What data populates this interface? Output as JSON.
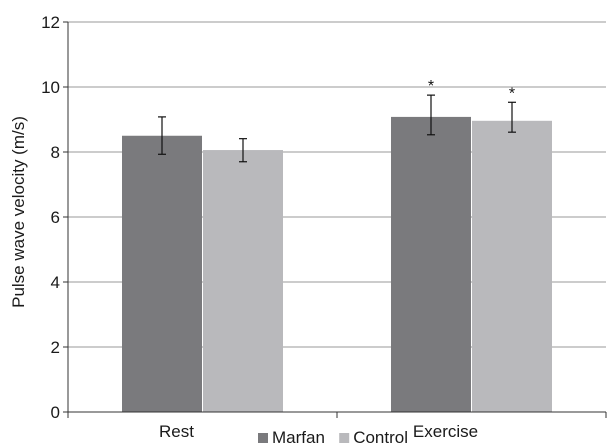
{
  "chart_data": {
    "type": "bar",
    "categories": [
      "Rest",
      "Exercise"
    ],
    "series": [
      {
        "name": "Marfan",
        "color": "#7a7a7d",
        "values": [
          8.5,
          9.08
        ],
        "error_low": [
          7.93,
          8.53
        ],
        "error_high": [
          9.08,
          9.75
        ]
      },
      {
        "name": "Control",
        "color": "#b9b9bc",
        "values": [
          8.06,
          8.96
        ],
        "error_low": [
          7.7,
          8.61
        ],
        "error_high": [
          8.41,
          9.53
        ]
      }
    ],
    "significance": [
      [
        "",
        "*"
      ],
      [
        "",
        "*"
      ]
    ],
    "ylabel": "Pulse wave velocity (m/s)",
    "xlabel": "",
    "ylim": [
      0,
      12
    ],
    "yticks": [
      0,
      2,
      4,
      6,
      8,
      10,
      12
    ],
    "grid": true,
    "legend_position": "bottom-center"
  }
}
